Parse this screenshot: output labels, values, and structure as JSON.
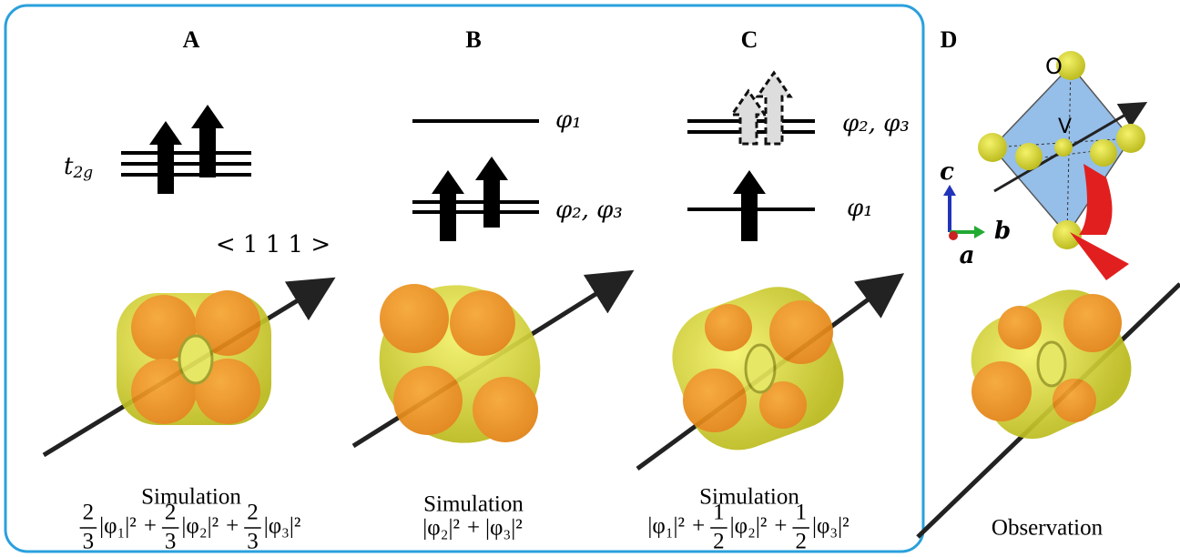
{
  "panels": [
    {
      "label": "A",
      "level_label": {
        "base": "t",
        "sub": "2g"
      },
      "axis_label": "< 1 1 1 >",
      "caption": "Simulation",
      "formula": [
        {
          "num": "2",
          "den": "3"
        },
        "|φ₁|²",
        "+",
        {
          "num": "2",
          "den": "3"
        },
        "|φ₂|²",
        "+",
        {
          "num": "2",
          "den": "3"
        },
        "|φ₃|²"
      ]
    },
    {
      "label": "B",
      "upper_label": "φ₁",
      "lower_label": "φ₂, φ₃",
      "caption": "Simulation",
      "formula": [
        "|φ₂|²",
        "+",
        "|φ₃|²"
      ]
    },
    {
      "label": "C",
      "upper_label": "φ₂, φ₃",
      "lower_label": "φ₁",
      "caption": "Simulation",
      "formula": [
        "|φ₁|²",
        "+",
        {
          "num": "1",
          "den": "2"
        },
        "|φ₂|²",
        "+",
        {
          "num": "1",
          "den": "2"
        },
        "|φ₃|²"
      ]
    },
    {
      "label": "D",
      "oxygen": "O",
      "vanadium": "V",
      "axes": {
        "c": "c",
        "b": "b",
        "a": "a"
      },
      "caption": "Observation"
    }
  ]
}
